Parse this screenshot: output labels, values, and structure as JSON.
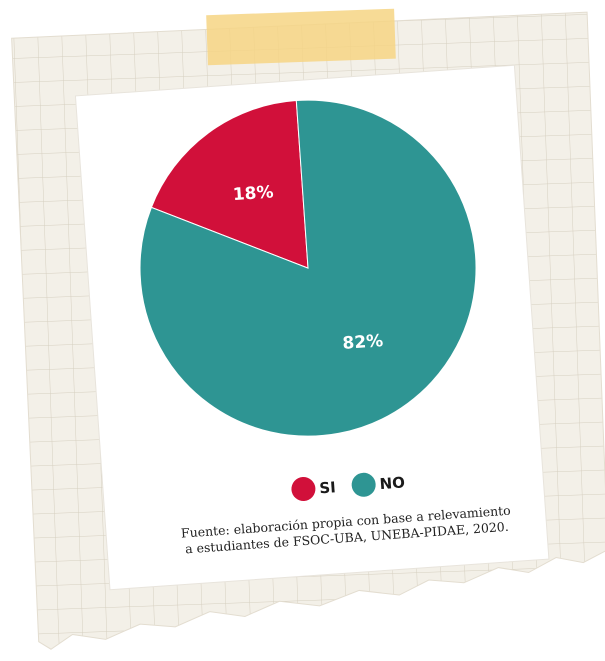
{
  "chart_data": {
    "type": "pie",
    "categories": [
      "SI",
      "NO"
    ],
    "values": [
      18,
      82
    ],
    "value_labels": [
      "18%",
      "82%"
    ],
    "colors": [
      "#d1103a",
      "#2e9593"
    ],
    "source": [
      "Fuente: elaboración propia con base a relevamiento",
      "a estudiantes de FSOC-UBA, UNEBA-PIDAE, 2020."
    ]
  }
}
